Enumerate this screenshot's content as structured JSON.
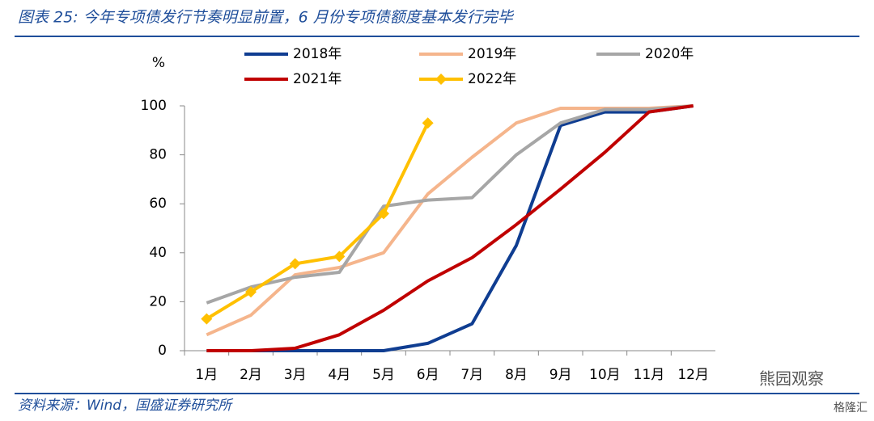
{
  "chart_data": {
    "type": "line",
    "title": "图表 25:  今年专项债发行节奏明显前置，6 月份专项债额度基本发行完毕",
    "source": "资料来源：Wind，国盛证券研究所",
    "watermarks": [
      "熊园观察",
      "格隆汇"
    ],
    "ylabel": "%",
    "categories": [
      "1月",
      "2月",
      "3月",
      "4月",
      "5月",
      "6月",
      "7月",
      "8月",
      "9月",
      "10月",
      "11月",
      "12月"
    ],
    "series": [
      {
        "name": "2018年",
        "color": "#0f3d91",
        "values": [
          0,
          0,
          0,
          0,
          0,
          3,
          11,
          43,
          92,
          97.5,
          97.5,
          100
        ]
      },
      {
        "name": "2019年",
        "color": "#f5b58c",
        "values": [
          6.5,
          14.5,
          31,
          34,
          40,
          64,
          79,
          93,
          99,
          99,
          99,
          100
        ]
      },
      {
        "name": "2020年",
        "color": "#a6a6a6",
        "values": [
          19.5,
          26,
          30,
          32,
          59,
          61.5,
          62.5,
          80,
          93,
          98.5,
          98.5,
          100
        ]
      },
      {
        "name": "2021年",
        "color": "#c00000",
        "values": [
          0,
          0,
          1,
          6.5,
          16.5,
          28.5,
          38,
          51.5,
          66,
          81,
          97.5,
          100
        ]
      },
      {
        "name": "2022年",
        "color": "#ffc000",
        "marker": "diamond",
        "values": [
          13,
          24,
          35.5,
          38.5,
          56,
          93,
          null,
          null,
          null,
          null,
          null,
          null
        ]
      }
    ],
    "ylim": [
      0,
      100
    ],
    "yticks": [
      0,
      20,
      40,
      60,
      80,
      100
    ],
    "grid": false
  }
}
